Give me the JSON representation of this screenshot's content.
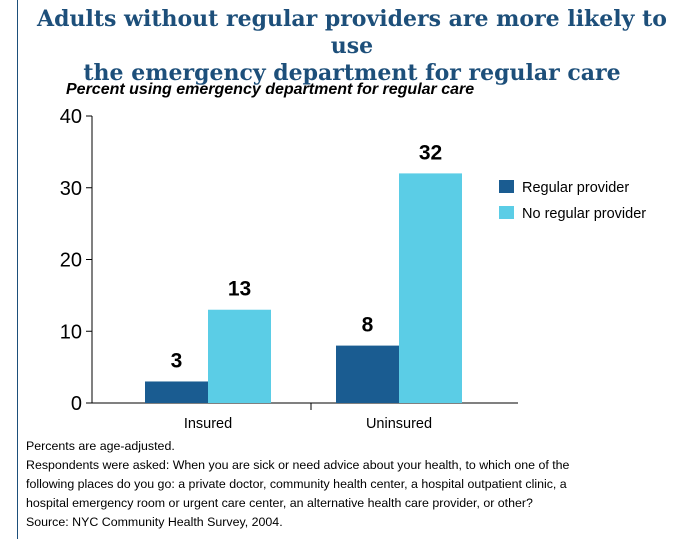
{
  "chart_data": {
    "type": "bar",
    "title_lines": [
      "Adults without regular providers are more likely to use",
      "the emergency department for regular care"
    ],
    "subtitle": "Percent using emergency department for regular care",
    "categories": [
      "Insured",
      "Uninsured"
    ],
    "series": [
      {
        "name": "Regular provider",
        "color": "#1a5c91",
        "values": [
          3,
          8
        ]
      },
      {
        "name": "No regular provider",
        "color": "#5bcde6",
        "values": [
          13,
          32
        ]
      }
    ],
    "ylim": [
      0,
      40
    ],
    "yticks": [
      "0",
      "10",
      "20",
      "30",
      "40"
    ],
    "data_labels": true,
    "legend_position": "right",
    "grid": false
  },
  "notes": [
    "Percents are age-adjusted.",
    "Respondents were asked: When you are sick or need advice about your health, to which one of the",
    "following places do you go: a private doctor, community health center, a hospital outpatient clinic, a",
    "hospital emergency room or urgent care center, an alternative health care provider, or other?",
    "Source: NYC Community Health Survey, 2004."
  ]
}
